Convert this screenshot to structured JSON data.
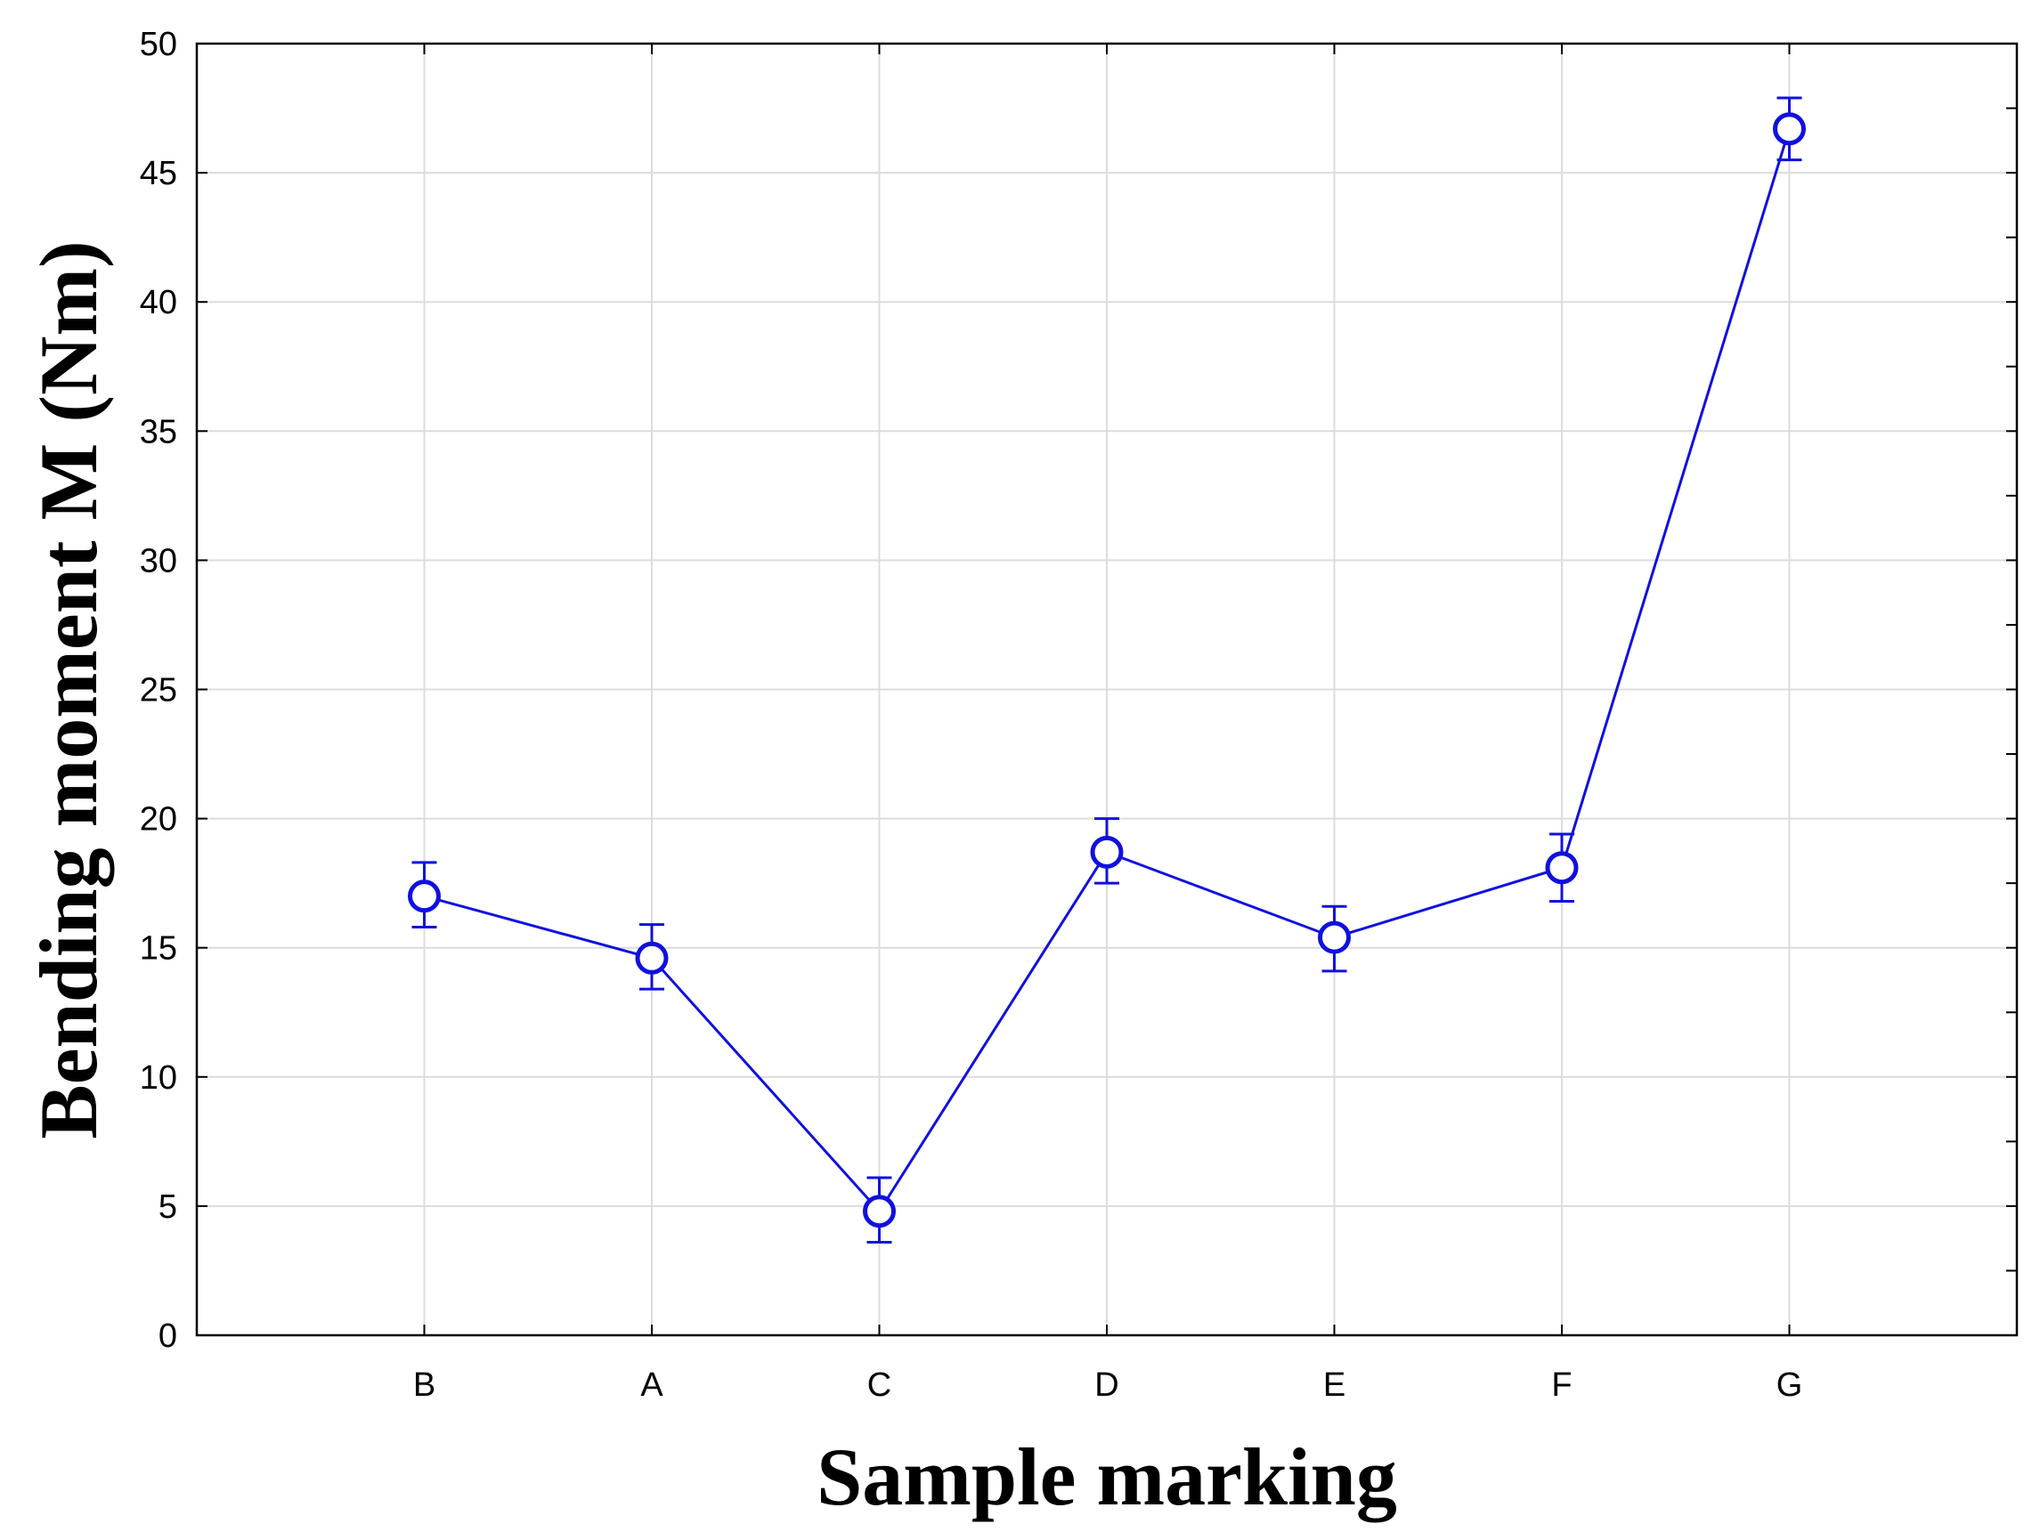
{
  "chart_data": {
    "type": "line",
    "title": "",
    "xlabel": "Sample marking",
    "ylabel": "Bending moment M (Nm)",
    "categories": [
      "B",
      "A",
      "C",
      "D",
      "E",
      "F",
      "G"
    ],
    "series": [
      {
        "values": [
          17.0,
          14.6,
          4.8,
          18.7,
          15.4,
          18.1,
          46.7
        ],
        "error_low": [
          15.8,
          13.4,
          3.6,
          17.5,
          14.1,
          16.8,
          45.5
        ],
        "error_high": [
          18.3,
          15.9,
          6.1,
          20.0,
          16.6,
          19.4,
          47.9
        ],
        "color": "#1010e0",
        "marker": "circle"
      }
    ],
    "ylim": [
      0,
      50
    ],
    "yticks": [
      0,
      5,
      10,
      15,
      20,
      25,
      30,
      35,
      40,
      45,
      50
    ],
    "grid": true,
    "legend": "none"
  }
}
